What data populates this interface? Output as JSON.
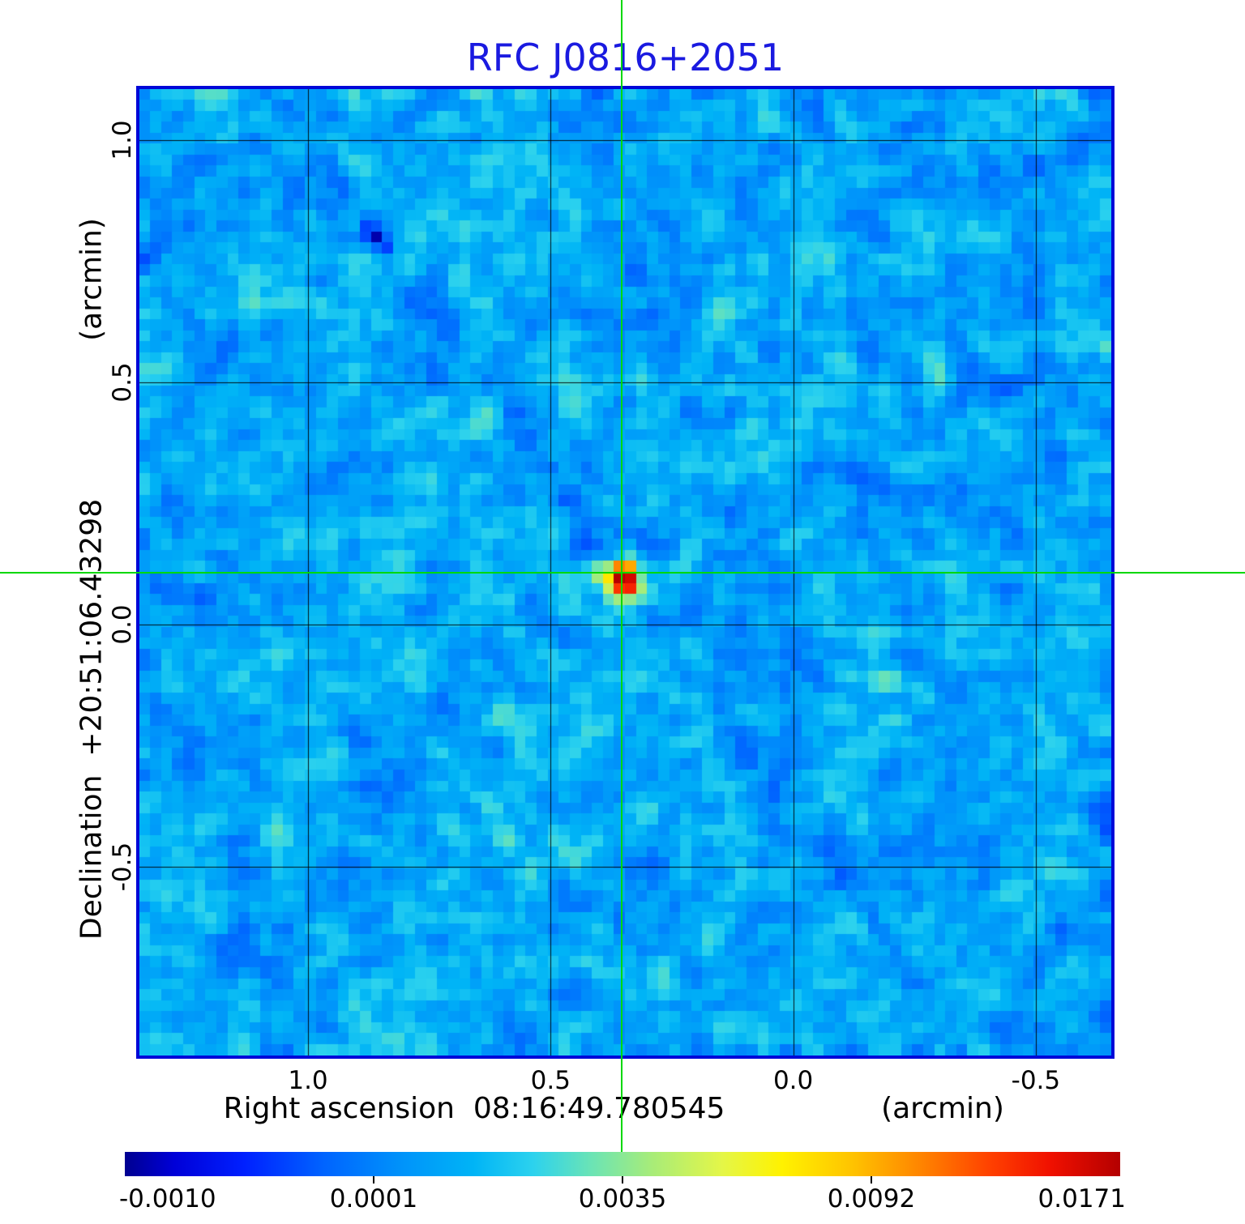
{
  "title": {
    "text": "RFC J0816+2051",
    "color": "#1a1ae0"
  },
  "x_axis": {
    "title": "Right ascension  08:16:49.780545",
    "unit_label": "(arcmin)",
    "tick_labels": [
      "1.0",
      "0.5",
      "0.0",
      "-0.5"
    ],
    "tick_values": [
      1.0,
      0.5,
      0.0,
      -0.5
    ],
    "range_arcmin": [
      1.35,
      -0.66
    ]
  },
  "y_axis": {
    "title": "Declination  +20:51:06.43298",
    "unit_label": "(arcmin)",
    "tick_labels": [
      "1.0",
      "0.5",
      "0.0",
      "-0.5"
    ],
    "tick_values": [
      1.0,
      0.5,
      0.0,
      -0.5
    ],
    "range_arcmin": [
      1.11,
      -0.9
    ]
  },
  "crosshair": {
    "color": "#00d800",
    "ra_offset_arcmin": 0.353,
    "dec_offset_arcmin": 0.107
  },
  "colorbar": {
    "tick_labels": [
      "-0.0010",
      "0.0001",
      "0.0035",
      "0.0092",
      "0.0171"
    ],
    "tick_values": [
      -0.001,
      0.0001,
      0.0035,
      0.0092,
      0.0171
    ],
    "min": -0.001,
    "max": 0.0171
  },
  "colors": {
    "plot_border": "#0008d8",
    "grid_line": "#000000",
    "base_noise": "#00a4f8",
    "source_core": "#b40000"
  },
  "chart_data": {
    "type": "heatmap",
    "title": "RFC J0816+2051",
    "xlabel": "Right ascension 08:16:49.780545 (arcmin)",
    "ylabel": "Declination +20:51:06.43298 (arcmin)",
    "x_ticks_arcmin": [
      1.0,
      0.5,
      0.0,
      -0.5
    ],
    "y_ticks_arcmin": [
      1.0,
      0.5,
      0.0,
      -0.5
    ],
    "x_range_arcmin": [
      1.35,
      -0.66
    ],
    "y_range_arcmin": [
      1.11,
      -0.9
    ],
    "grid": true,
    "colormap": "rainbow: dark blue -> blue -> cyan -> green -> yellow -> orange -> red -> dark red",
    "colorbar_ticks": [
      -0.001,
      0.0001,
      0.0035,
      0.0092,
      0.0171
    ],
    "colorbar_scale": "non-linear intensity scale",
    "background_noise": "field of random noise around 0.0001, rendered as blue/cyan pixels",
    "point_source": {
      "peak_value": 0.0171,
      "ra_offset_arcmin": 0.353,
      "dec_offset_arcmin": 0.107,
      "marked_by": "green crosshair lines spanning the full figure"
    },
    "legend": "none"
  }
}
